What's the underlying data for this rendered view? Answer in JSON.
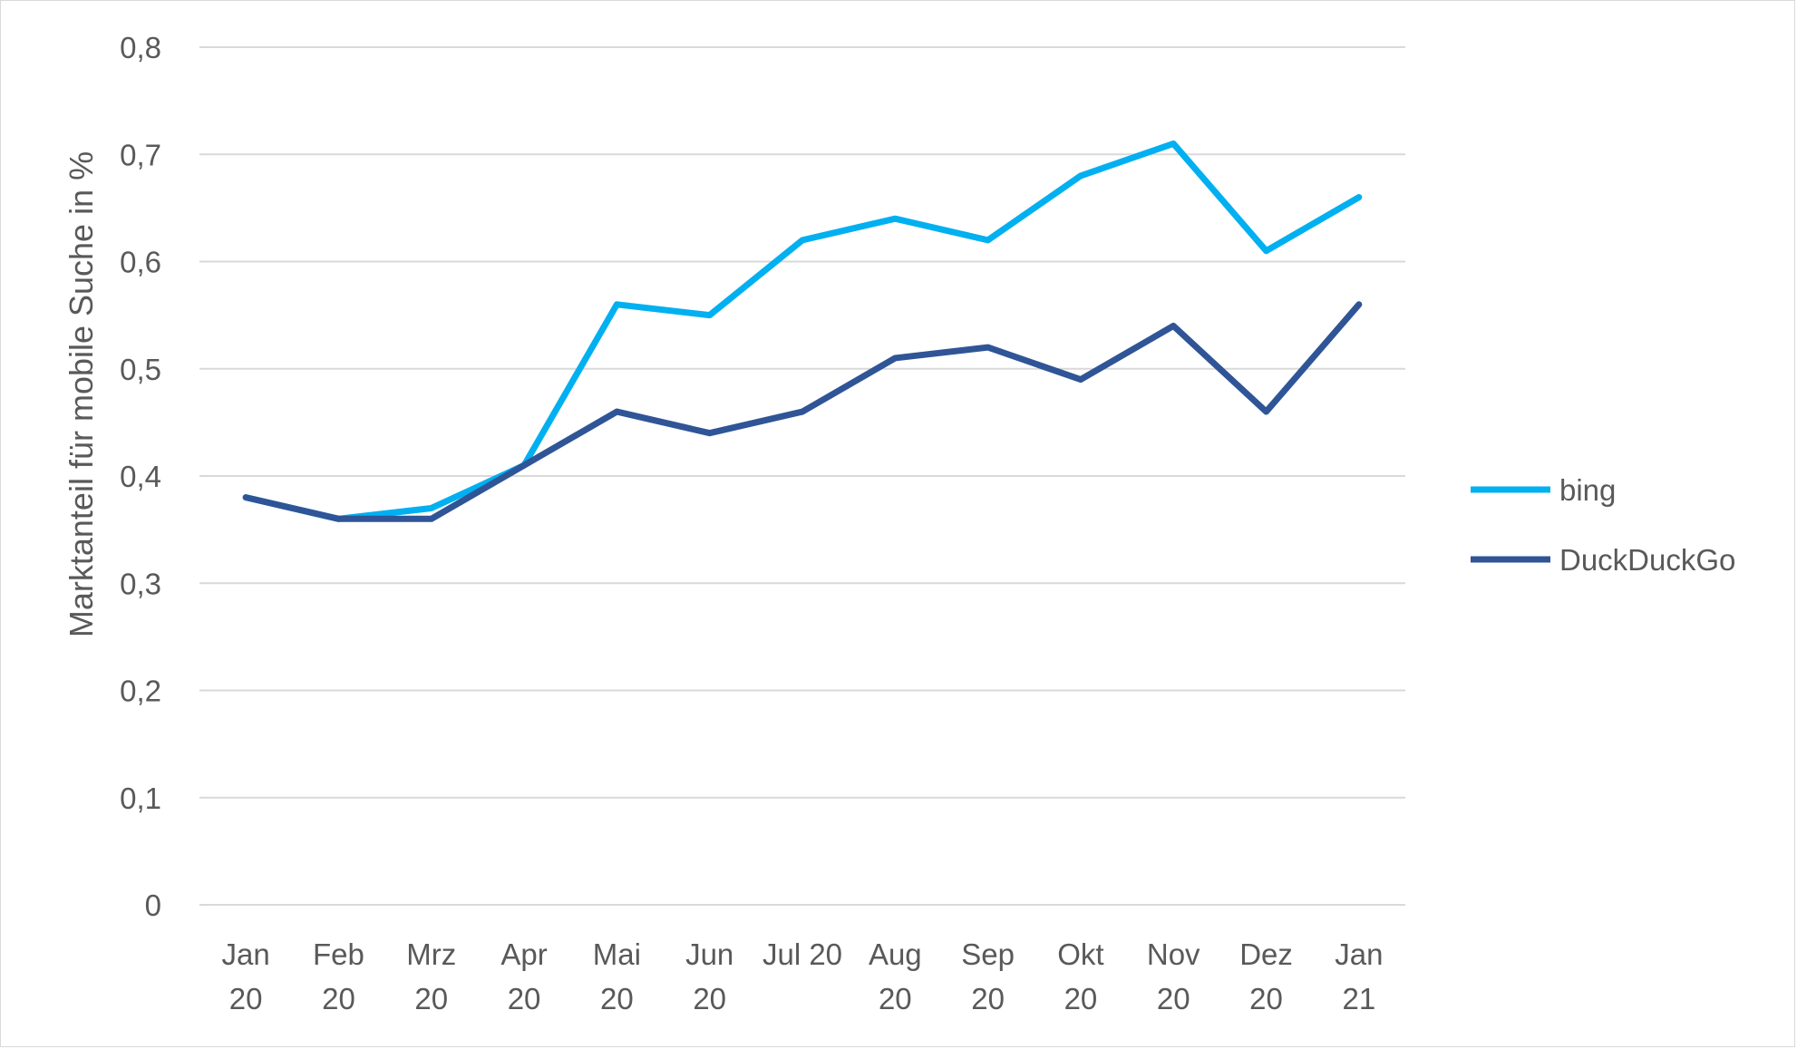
{
  "chart_data": {
    "type": "line",
    "ylabel": "Marktanteil für mobile Suche in %",
    "xlabel": "",
    "ylim": [
      0,
      0.8
    ],
    "y_ticks": [
      "0",
      "0,1",
      "0,2",
      "0,3",
      "0,4",
      "0,5",
      "0,6",
      "0,7",
      "0,8"
    ],
    "categories": [
      [
        "Jan",
        "20"
      ],
      [
        "Feb",
        "20"
      ],
      [
        "Mrz",
        "20"
      ],
      [
        "Apr",
        "20"
      ],
      [
        "Mai",
        "20"
      ],
      [
        "Jun",
        "20"
      ],
      [
        "Jul 20",
        ""
      ],
      [
        "Aug",
        "20"
      ],
      [
        "Sep",
        "20"
      ],
      [
        "Okt",
        "20"
      ],
      [
        "Nov",
        "20"
      ],
      [
        "Dez",
        "20"
      ],
      [
        "Jan",
        "21"
      ]
    ],
    "grid": true,
    "legend_position": "right",
    "series": [
      {
        "name": "bing",
        "color": "#00b0f0",
        "values": [
          0.38,
          0.36,
          0.37,
          0.41,
          0.56,
          0.55,
          0.62,
          0.64,
          0.62,
          0.68,
          0.71,
          0.61,
          0.66
        ]
      },
      {
        "name": "DuckDuckGo",
        "color": "#2f5597",
        "values": [
          0.38,
          0.36,
          0.36,
          0.41,
          0.46,
          0.44,
          0.46,
          0.51,
          0.52,
          0.49,
          0.54,
          0.46,
          0.56
        ]
      }
    ]
  }
}
